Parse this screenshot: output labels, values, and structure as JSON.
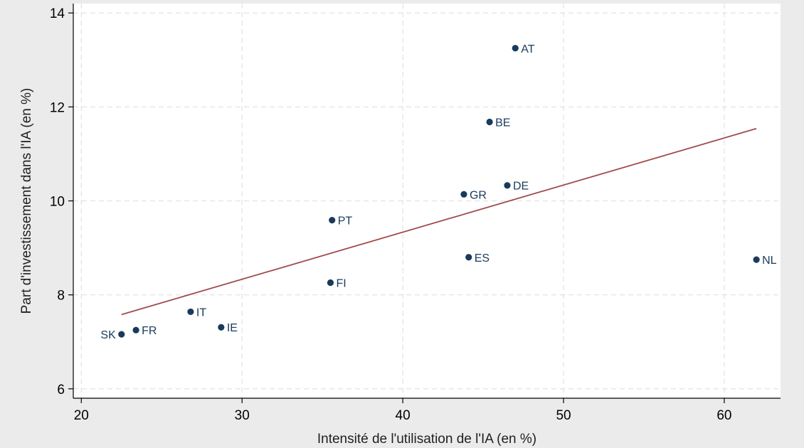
{
  "chart_data": {
    "type": "scatter",
    "title": "",
    "xlabel": "Intensité de l'utilisation de l'IA (en %)",
    "ylabel": "Part d'investissement dans l'IA (en %)",
    "xlim": [
      19.5,
      63.5
    ],
    "ylim": [
      5.8,
      14.2
    ],
    "xticks": [
      20,
      30,
      40,
      50,
      60
    ],
    "yticks": [
      6,
      8,
      10,
      12,
      14
    ],
    "grid": true,
    "colors": {
      "background": "#ebebeb",
      "plot_background": "#ffffff",
      "grid": "#e3e3e3",
      "axis": "#000000",
      "points": "#1a3a5c",
      "labels": "#1a3a5c",
      "fit_line": "#a24a4a"
    },
    "points": [
      {
        "label": "AT",
        "x": 47.0,
        "y": 13.25,
        "label_side": "right"
      },
      {
        "label": "BE",
        "x": 45.4,
        "y": 11.68,
        "label_side": "right"
      },
      {
        "label": "DE",
        "x": 46.5,
        "y": 10.33,
        "label_side": "right"
      },
      {
        "label": "GR",
        "x": 43.8,
        "y": 10.14,
        "label_side": "right"
      },
      {
        "label": "PT",
        "x": 35.6,
        "y": 9.59,
        "label_side": "right"
      },
      {
        "label": "ES",
        "x": 44.1,
        "y": 8.8,
        "label_side": "right"
      },
      {
        "label": "NL",
        "x": 62.0,
        "y": 8.75,
        "label_side": "right"
      },
      {
        "label": "FI",
        "x": 35.5,
        "y": 8.26,
        "label_side": "right"
      },
      {
        "label": "IT",
        "x": 26.8,
        "y": 7.64,
        "label_side": "right"
      },
      {
        "label": "IE",
        "x": 28.7,
        "y": 7.31,
        "label_side": "right"
      },
      {
        "label": "FR",
        "x": 23.4,
        "y": 7.25,
        "label_side": "right"
      },
      {
        "label": "SK",
        "x": 22.5,
        "y": 7.16,
        "label_side": "left"
      }
    ],
    "fit_line": {
      "x": [
        22.5,
        62.0
      ],
      "y": [
        7.58,
        11.54
      ]
    }
  }
}
